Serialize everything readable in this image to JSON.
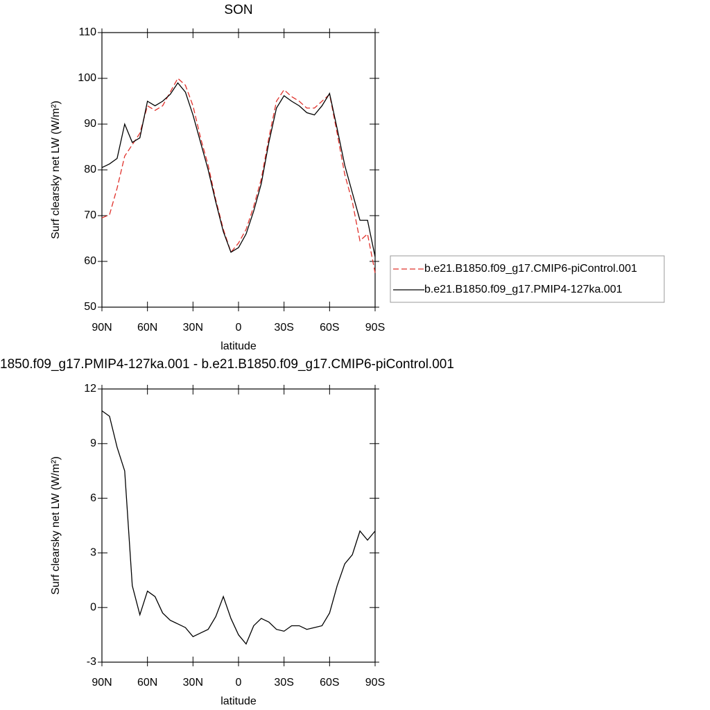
{
  "chart_data": [
    {
      "type": "line",
      "title": "SON",
      "x_label": "latitude",
      "y_label": "Surf clearsky net LW (W/m²)",
      "x": [
        90,
        85,
        80,
        75,
        70,
        65,
        60,
        55,
        50,
        45,
        40,
        35,
        30,
        25,
        20,
        15,
        10,
        5,
        0,
        -5,
        -10,
        -15,
        -20,
        -25,
        -30,
        -35,
        -40,
        -45,
        -50,
        -55,
        -60,
        -65,
        -70,
        -75,
        -80,
        -85,
        -90
      ],
      "series": [
        {
          "name": "b.e21.B1850.f09_g17.CMIP6-piControl.001",
          "color": "#e0302a",
          "style": "dashed",
          "values": [
            69.5,
            70.2,
            76,
            83,
            85.5,
            88,
            94,
            93,
            94,
            97,
            100,
            98.5,
            94,
            87,
            81,
            73.5,
            67,
            62,
            64,
            67,
            72,
            78,
            87,
            95,
            97.5,
            96,
            95,
            93.5,
            93.5,
            95,
            96.5,
            88,
            79,
            73,
            64.5,
            66,
            57.5
          ]
        },
        {
          "name": "b.e21.B1850.f09_g17.PMIP4-127ka.001",
          "color": "#000000",
          "style": "solid",
          "values": [
            80.5,
            81.3,
            82.5,
            90,
            86,
            87,
            95,
            94,
            95,
            96.5,
            99,
            97,
            92,
            86,
            80,
            73,
            66.5,
            62,
            63,
            66,
            71,
            77,
            86,
            93.5,
            96.2,
            95,
            94,
            92.5,
            92,
            94,
            96.7,
            89,
            81,
            75,
            69,
            69,
            61
          ]
        }
      ],
      "xlim": [
        90,
        -90
      ],
      "xticks": [
        {
          "value": 90,
          "label": "90N"
        },
        {
          "value": 60,
          "label": "60N"
        },
        {
          "value": 30,
          "label": "30N"
        },
        0,
        {
          "value": -30,
          "label": "30S"
        },
        {
          "value": -60,
          "label": "60S"
        },
        {
          "value": -90,
          "label": "90S"
        }
      ],
      "ylim": [
        50,
        110
      ],
      "yticks": [
        50,
        60,
        70,
        80,
        90,
        100,
        110
      ],
      "legend": "right"
    },
    {
      "type": "line",
      "title": "1850.f09_g17.PMIP4-127ka.001 - b.e21.B1850.f09_g17.CMIP6-piControl.001",
      "x_label": "latitude",
      "y_label": "Surf clearsky net LW (W/m²)",
      "x": [
        90,
        85,
        80,
        75,
        70,
        65,
        60,
        55,
        50,
        45,
        40,
        35,
        30,
        25,
        20,
        15,
        10,
        5,
        0,
        -5,
        -10,
        -15,
        -20,
        -25,
        -30,
        -35,
        -40,
        -45,
        -50,
        -55,
        -60,
        -65,
        -70,
        -75,
        -80,
        -85,
        -90
      ],
      "values": [
        10.8,
        10.5,
        8.8,
        7.5,
        1.2,
        -0.4,
        0.9,
        0.6,
        -0.3,
        -0.7,
        -0.9,
        -1.1,
        -1.6,
        -1.4,
        -1.2,
        -0.5,
        0.6,
        -0.6,
        -1.5,
        -2.0,
        -1.0,
        -0.6,
        -0.8,
        -1.2,
        -1.3,
        -1.0,
        -1.0,
        -1.2,
        -1.1,
        -1.0,
        -0.3,
        1.2,
        2.4,
        2.9,
        4.2,
        3.7,
        4.2
      ],
      "color": "#000000",
      "xlim": [
        90,
        -90
      ],
      "xticks": [
        {
          "value": 90,
          "label": "90N"
        },
        {
          "value": 60,
          "label": "60N"
        },
        {
          "value": 30,
          "label": "30N"
        },
        0,
        {
          "value": -30,
          "label": "30S"
        },
        {
          "value": -60,
          "label": "60S"
        },
        {
          "value": -90,
          "label": "90S"
        }
      ],
      "ylim": [
        -3,
        12
      ],
      "yticks": [
        -3,
        0,
        3,
        6,
        9,
        12
      ]
    }
  ]
}
